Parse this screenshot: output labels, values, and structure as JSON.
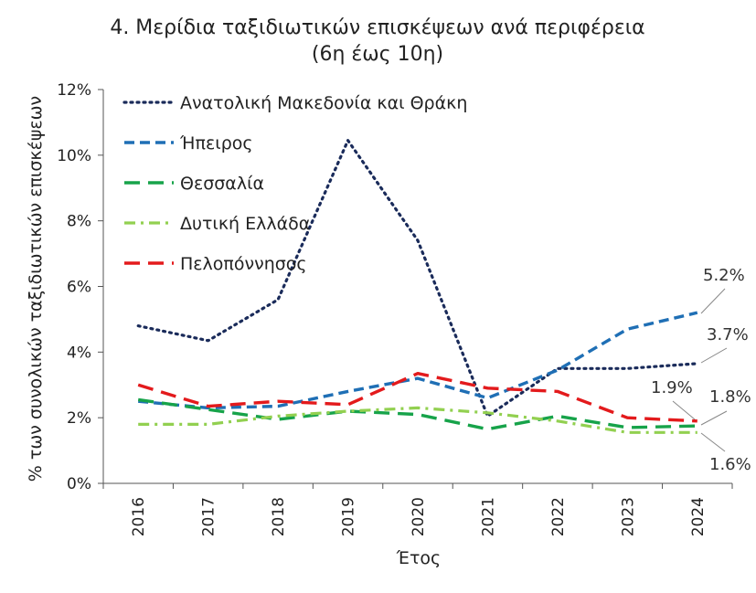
{
  "chart_data": {
    "type": "line",
    "title": "4. Μερίδια ταξιδιωτικών επισκέψεων ανά περιφέρεια",
    "subtitle": "(6η έως 10η)",
    "xlabel": "Έτος",
    "ylabel": "% των συνολικών ταξιδιωτικών επισκέψεων",
    "categories": [
      "2016",
      "2017",
      "2018",
      "2019",
      "2020",
      "2021",
      "2022",
      "2023",
      "2024"
    ],
    "ylim": [
      0,
      12
    ],
    "yticks": [
      "0%",
      "2%",
      "4%",
      "6%",
      "8%",
      "10%",
      "12%"
    ],
    "legend_position": "top-left",
    "grid": false,
    "series": [
      {
        "name": "Ανατολική Μακεδονία και Θράκη",
        "color": "#1a2b5a",
        "dash": "dot",
        "values": [
          4.8,
          4.35,
          5.6,
          10.45,
          7.4,
          2.05,
          3.5,
          3.5,
          3.65
        ]
      },
      {
        "name": "Ήπειρος",
        "color": "#1f6fb5",
        "dash": "dash",
        "values": [
          2.5,
          2.3,
          2.35,
          2.8,
          3.2,
          2.6,
          3.45,
          4.7,
          5.2
        ]
      },
      {
        "name": "Θεσσαλία",
        "color": "#17a34a",
        "dash": "longdash",
        "values": [
          2.55,
          2.25,
          1.95,
          2.2,
          2.1,
          1.65,
          2.05,
          1.7,
          1.75
        ]
      },
      {
        "name": "Δυτική Ελλάδα",
        "color": "#92d050",
        "dash": "dashdot",
        "values": [
          1.8,
          1.8,
          2.05,
          2.2,
          2.3,
          2.15,
          1.9,
          1.55,
          1.55
        ]
      },
      {
        "name": "Πελοπόννησος",
        "color": "#e31a1c",
        "dash": "longdash",
        "values": [
          3.0,
          2.35,
          2.5,
          2.4,
          3.35,
          2.9,
          2.8,
          2.0,
          1.9
        ]
      }
    ],
    "data_labels": [
      {
        "text": "5.2%"
      },
      {
        "text": "3.7%"
      },
      {
        "text": "1.9%"
      },
      {
        "text": "1.8%"
      },
      {
        "text": "1.6%"
      }
    ]
  }
}
